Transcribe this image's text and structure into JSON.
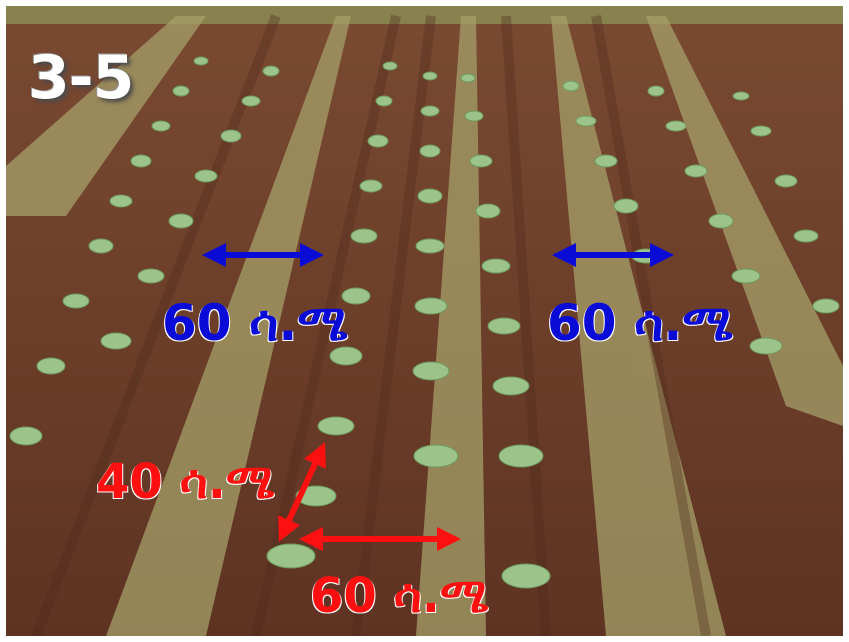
{
  "figure_number": "3-5",
  "spacing_labels": {
    "row_spacing_left": "60 ሳ.ሜ",
    "row_spacing_right": "60  ሳ.ሜ",
    "plant_spacing_in_row": "40 ሳ.ሜ",
    "bottom_spacing": "60 ሳ.ሜ"
  },
  "colors": {
    "row_spacing_arrow": "#0b0bd8",
    "plant_spacing_arrow": "#ff1010",
    "soil": "#6b3f2a",
    "grass_strip": "#a6a06a",
    "seedling": "#9cc48a"
  }
}
